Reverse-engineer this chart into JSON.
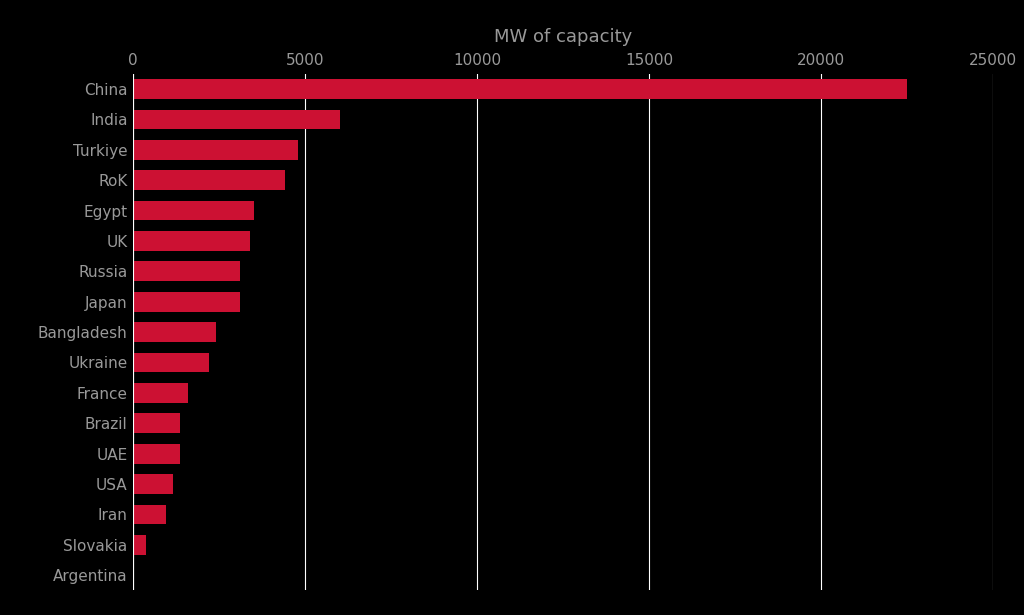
{
  "title": "MW of capacity",
  "background_color": "#000000",
  "bar_color": "#CC1133",
  "text_color": "#999999",
  "categories": [
    "China",
    "India",
    "Turkiye",
    "RoK",
    "Egypt",
    "UK",
    "Russia",
    "Japan",
    "Bangladesh",
    "Ukraine",
    "France",
    "Brazil",
    "UAE",
    "USA",
    "Iran",
    "Slovakia",
    "Argentina"
  ],
  "values": [
    22500,
    6000,
    4800,
    4400,
    3500,
    3400,
    3100,
    3100,
    2400,
    2200,
    1600,
    1350,
    1350,
    1150,
    950,
    380,
    20
  ],
  "xlim": [
    0,
    25000
  ],
  "xticks": [
    0,
    5000,
    10000,
    15000,
    20000,
    25000
  ],
  "xtick_labels": [
    "0",
    "5000",
    "10000",
    "15000",
    "20000",
    "25000"
  ],
  "grid_color": "#FFFFFF",
  "title_fontsize": 13,
  "label_fontsize": 11,
  "tick_fontsize": 11,
  "bar_height": 0.65
}
